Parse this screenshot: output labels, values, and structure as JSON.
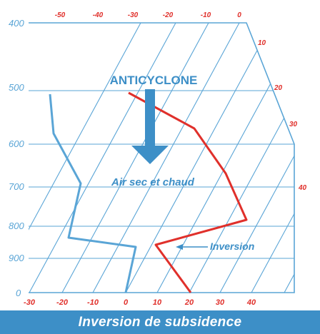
{
  "diagram": {
    "pressure_levels": [
      {
        "label": "400",
        "value": 400
      },
      {
        "label": "500",
        "value": 500
      },
      {
        "label": "600",
        "value": 600
      },
      {
        "label": "700",
        "value": 700
      },
      {
        "label": "800",
        "value": 800
      },
      {
        "label": "900",
        "value": 900
      },
      {
        "label": "0",
        "value": 1000
      }
    ],
    "top_temps": [
      "-50",
      "-40",
      "-30",
      "-20",
      "-10",
      "0"
    ],
    "right_temps": [
      "10",
      "20",
      "30",
      "40"
    ],
    "bottom_temps": [
      "-30",
      "-20",
      "-10",
      "0",
      "10",
      "20",
      "30",
      "40"
    ],
    "annotations": {
      "main": "ANTICYCLONE",
      "sub": "Air sec et chaud",
      "inversion": "Inversion"
    },
    "colors": {
      "grid": "#5aa5d6",
      "temperature_curve": "#e0302b",
      "dewpoint_curve": "#5aa5d6",
      "arrow": "#3d8fc7",
      "banner": "#3d8fc7"
    }
  },
  "footer": {
    "caption": "Inversion de subsidence"
  }
}
